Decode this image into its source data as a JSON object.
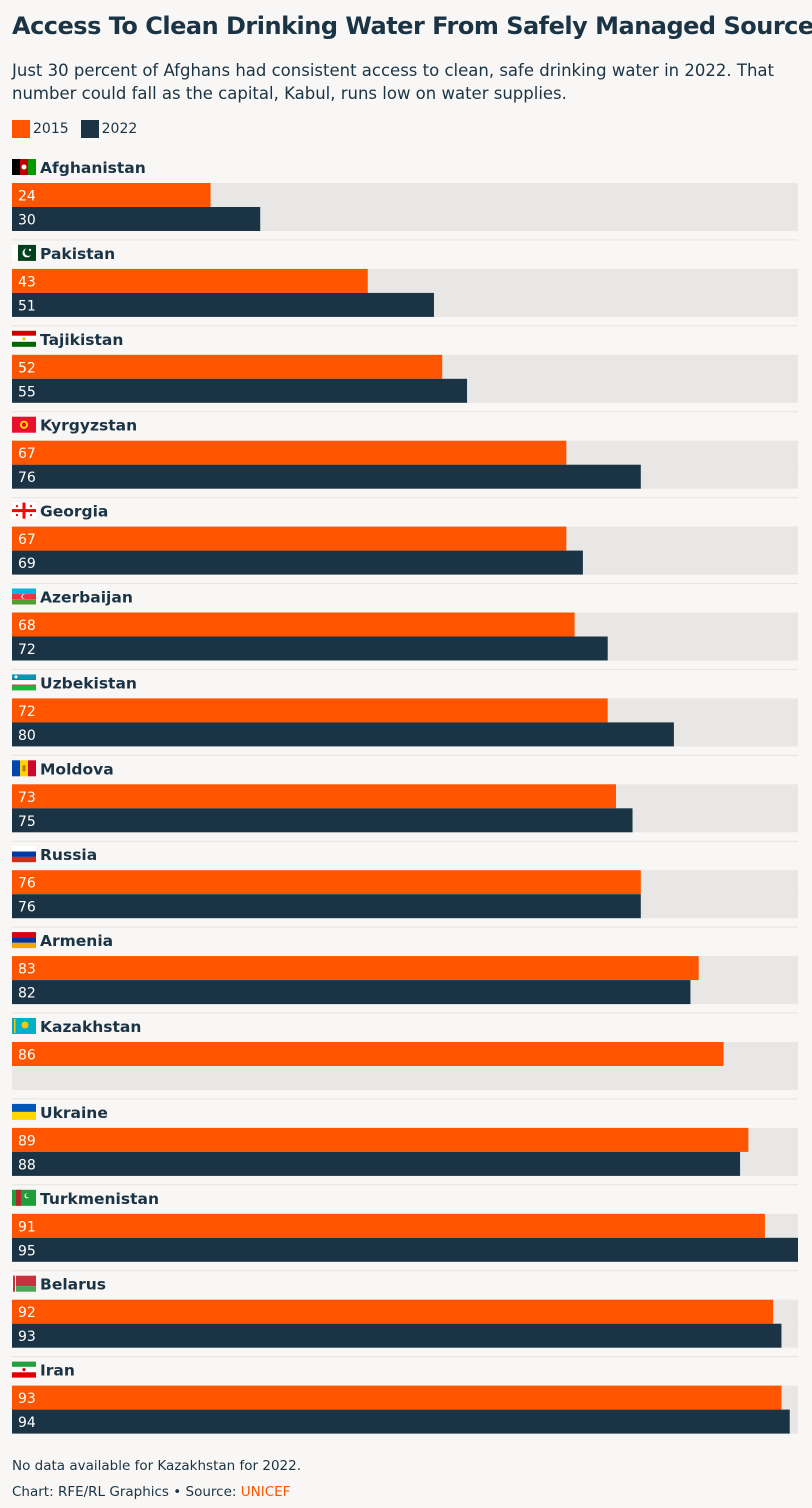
{
  "title": "Access To Clean Drinking Water From Safely Managed Sources",
  "subtitle": "Just 30 percent of Afghans had consistent access to clean, safe drinking water in 2022. That number could fall as the capital, Kabul, runs low on water supplies.",
  "legend": [
    {
      "label": "2015",
      "color": "#ff5500"
    },
    {
      "label": "2022",
      "color": "#1b3445"
    }
  ],
  "colors": {
    "series_2015": "#ff5500",
    "series_2022": "#1b3445",
    "track": "#e9e7e5"
  },
  "chart_data": {
    "type": "bar",
    "orientation": "horizontal",
    "categories": [
      "Afghanistan",
      "Pakistan",
      "Tajikistan",
      "Kyrgyzstan",
      "Georgia",
      "Azerbaijan",
      "Uzbekistan",
      "Moldova",
      "Russia",
      "Armenia",
      "Kazakhstan",
      "Ukraine",
      "Turkmenistan",
      "Belarus",
      "Iran"
    ],
    "flags": [
      "afghanistan-flag-icon",
      "pakistan-flag-icon",
      "tajikistan-flag-icon",
      "kyrgyzstan-flag-icon",
      "georgia-flag-icon",
      "azerbaijan-flag-icon",
      "uzbekistan-flag-icon",
      "moldova-flag-icon",
      "russia-flag-icon",
      "armenia-flag-icon",
      "kazakhstan-flag-icon",
      "ukraine-flag-icon",
      "turkmenistan-flag-icon",
      "belarus-flag-icon",
      "iran-flag-icon"
    ],
    "series": [
      {
        "name": "2015",
        "values": [
          24,
          43,
          52,
          67,
          67,
          68,
          72,
          73,
          76,
          83,
          86,
          89,
          91,
          92,
          93
        ]
      },
      {
        "name": "2022",
        "values": [
          30,
          51,
          55,
          76,
          69,
          72,
          80,
          75,
          76,
          82,
          null,
          88,
          95,
          93,
          94
        ]
      }
    ],
    "xlim": [
      0,
      95
    ],
    "grid": false,
    "legend_position": "top-left"
  },
  "footnote": "No data available for Kazakhstan for 2022.",
  "credit": {
    "prefix": "Chart: RFE/RL Graphics • Source: ",
    "source": "UNICEF"
  }
}
